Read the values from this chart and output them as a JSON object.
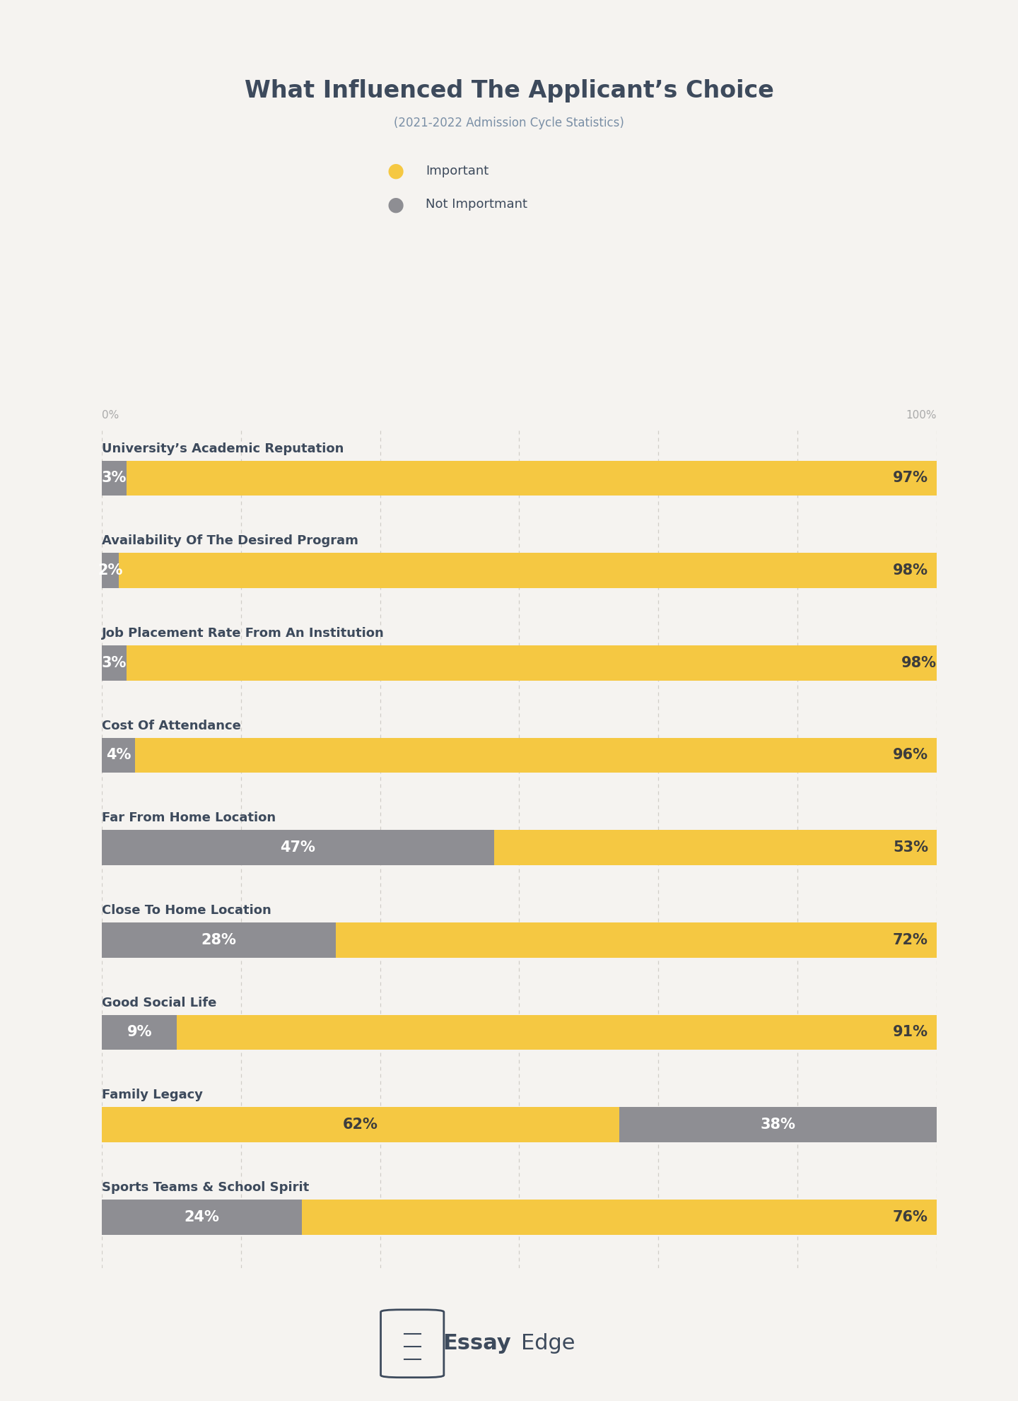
{
  "title": "What Influenced The Applicant’s Choice",
  "subtitle": "(2021-2022 Admission Cycle Statistics)",
  "background_color": "#f5f3f0",
  "yellow_color": "#f5c842",
  "gray_color": "#8e8e93",
  "title_color": "#3d4a5c",
  "subtitle_color": "#7a8fa6",
  "label_color": "#3d4a5c",
  "text_white": "#ffffff",
  "text_dark": "#3d3d3d",
  "footer_color": "#e8e5df",
  "legend_important": "Important",
  "legend_not_important": "Not Importmant",
  "categories": [
    "University’s Academic Reputation",
    "Availability Of The Desired Program",
    "Job Placement Rate From An Institution",
    "Cost Of Attendance",
    "Far From Home Location",
    "Close To Home Location",
    "Good Social Life",
    "Family Legacy",
    "Sports Teams & School Spirit"
  ],
  "not_important": [
    3,
    2,
    3,
    4,
    47,
    28,
    9,
    38,
    24
  ],
  "important": [
    97,
    98,
    98,
    96,
    53,
    72,
    91,
    62,
    76
  ],
  "family_legacy_order": "yellow_first",
  "grid_color": "#d0cdc8",
  "axis_label_color": "#aaaaaa"
}
